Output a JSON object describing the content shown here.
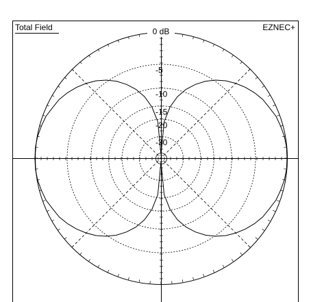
{
  "chart_data": {
    "type": "polar",
    "title": "Total Field",
    "subtitle": "EZNEC+",
    "rscale": "log",
    "rlim": [
      -60,
      0
    ],
    "rticks": [
      {
        "value": 0,
        "label": "0 dB"
      },
      -5,
      -10,
      -15,
      -20,
      -30
    ],
    "grid": true,
    "x": [
      0,
      5,
      10,
      15,
      20,
      25,
      30,
      35,
      40,
      45,
      50,
      55,
      60,
      65,
      70,
      75,
      80,
      85,
      90,
      95,
      100,
      105,
      110,
      115,
      120,
      125,
      130,
      135,
      140,
      145,
      150,
      155,
      160,
      165,
      170,
      175,
      180,
      185,
      190,
      195,
      200,
      205,
      210,
      215,
      220,
      225,
      230,
      235,
      240,
      245,
      250,
      255,
      260,
      265,
      270,
      275,
      280,
      285,
      290,
      295,
      300,
      305,
      310,
      315,
      320,
      325,
      330,
      335,
      340,
      345,
      350,
      355
    ],
    "series": [
      {
        "color": "#000000",
        "values": [
          0,
          0,
          -0.1,
          -0.3,
          -0.5,
          -0.9,
          -1.2,
          -1.7,
          -2.3,
          -3,
          -3.8,
          -4.8,
          -6,
          -7.5,
          -9.3,
          -11.7,
          -15.2,
          -21.2,
          -60,
          -21.2,
          -15.2,
          -11.7,
          -9.3,
          -7.5,
          -6,
          -4.8,
          -3.8,
          -3,
          -2.3,
          -1.7,
          -1.2,
          -0.9,
          -0.5,
          -0.3,
          -0.1,
          0,
          0,
          0,
          -0.1,
          -0.3,
          -0.5,
          -0.9,
          -1.2,
          -1.7,
          -2.3,
          -3,
          -3.8,
          -4.8,
          -6,
          -7.5,
          -9.3,
          -11.7,
          -15.2,
          -21.2,
          -60,
          -21.2,
          -15.2,
          -11.7,
          -9.3,
          -7.5,
          -6,
          -4.8,
          -3.8,
          -3,
          -2.3,
          -1.7,
          -1.2,
          -0.9,
          -0.5,
          -0.3,
          -0.1,
          0
        ]
      }
    ]
  }
}
